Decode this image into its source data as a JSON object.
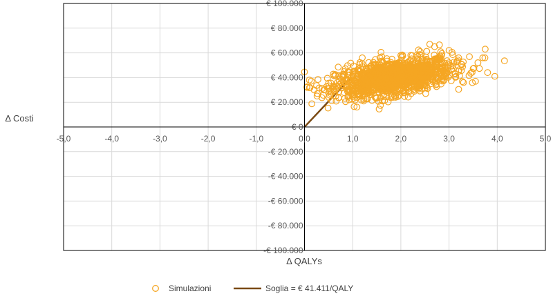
{
  "chart_data": {
    "type": "scatter",
    "xlabel": "Δ QALYs",
    "ylabel": "Δ Costi",
    "xlim": [
      -5,
      5
    ],
    "ylim": [
      -100000,
      100000
    ],
    "x_ticks": [
      -5,
      -4,
      -3,
      -2,
      -1,
      0,
      1,
      2,
      3,
      4,
      5
    ],
    "x_tick_labels": [
      "-5,0",
      "-4,0",
      "-3,0",
      "-2,0",
      "-1,0",
      "0,0",
      "1,0",
      "2,0",
      "3,0",
      "4,0",
      "5,0"
    ],
    "y_ticks": [
      -100000,
      -80000,
      -60000,
      -40000,
      -20000,
      0,
      20000,
      40000,
      60000,
      80000,
      100000
    ],
    "y_tick_labels": [
      "-€ 100.000",
      "-€ 80.000",
      "-€ 60.000",
      "-€ 40.000",
      "-€ 20.000",
      "€ 0",
      "€ 20.000",
      "€ 40.000",
      "€ 60.000",
      "€ 80.000",
      "€ 100.000"
    ],
    "grid": true,
    "legend_position": "bottom",
    "series": [
      {
        "name": "Simulazioni",
        "type": "scatter",
        "color": "#F5A623",
        "cloud": {
          "center": [
            1.85,
            40000
          ],
          "x_sd": 0.6,
          "y_sd": 7500,
          "correlation": 0.45,
          "x_range": [
            0.0,
            4.2
          ],
          "y_range": [
            14000,
            67000
          ]
        },
        "points": [
          [
            0.0,
            44500
          ],
          [
            0.05,
            32000
          ],
          [
            0.1,
            38000
          ],
          [
            0.2,
            30000
          ],
          [
            0.25,
            33500
          ],
          [
            0.4,
            30000
          ],
          [
            0.5,
            35500
          ],
          [
            0.7,
            48500
          ],
          [
            0.9,
            24500
          ],
          [
            1.0,
            31000
          ],
          [
            1.2,
            56000
          ],
          [
            1.4,
            21500
          ],
          [
            1.55,
            14500
          ],
          [
            1.8,
            25000
          ],
          [
            2.0,
            58000
          ],
          [
            2.4,
            61000
          ],
          [
            2.6,
            67000
          ],
          [
            2.7,
            65000
          ],
          [
            2.8,
            66500
          ],
          [
            3.0,
            62000
          ],
          [
            3.2,
            56000
          ],
          [
            3.3,
            36000
          ],
          [
            3.45,
            43500
          ],
          [
            3.55,
            37000
          ],
          [
            3.6,
            52000
          ],
          [
            3.7,
            56000
          ],
          [
            3.75,
            63000
          ],
          [
            3.8,
            44000
          ],
          [
            3.95,
            41000
          ],
          [
            4.15,
            53500
          ]
        ]
      },
      {
        "name": "Soglia = € 41.411/QALY",
        "type": "line",
        "color": "#7A4A14",
        "wtp": 41411,
        "x": [
          0.0,
          1.0
        ],
        "y": [
          0,
          41411
        ]
      }
    ]
  }
}
